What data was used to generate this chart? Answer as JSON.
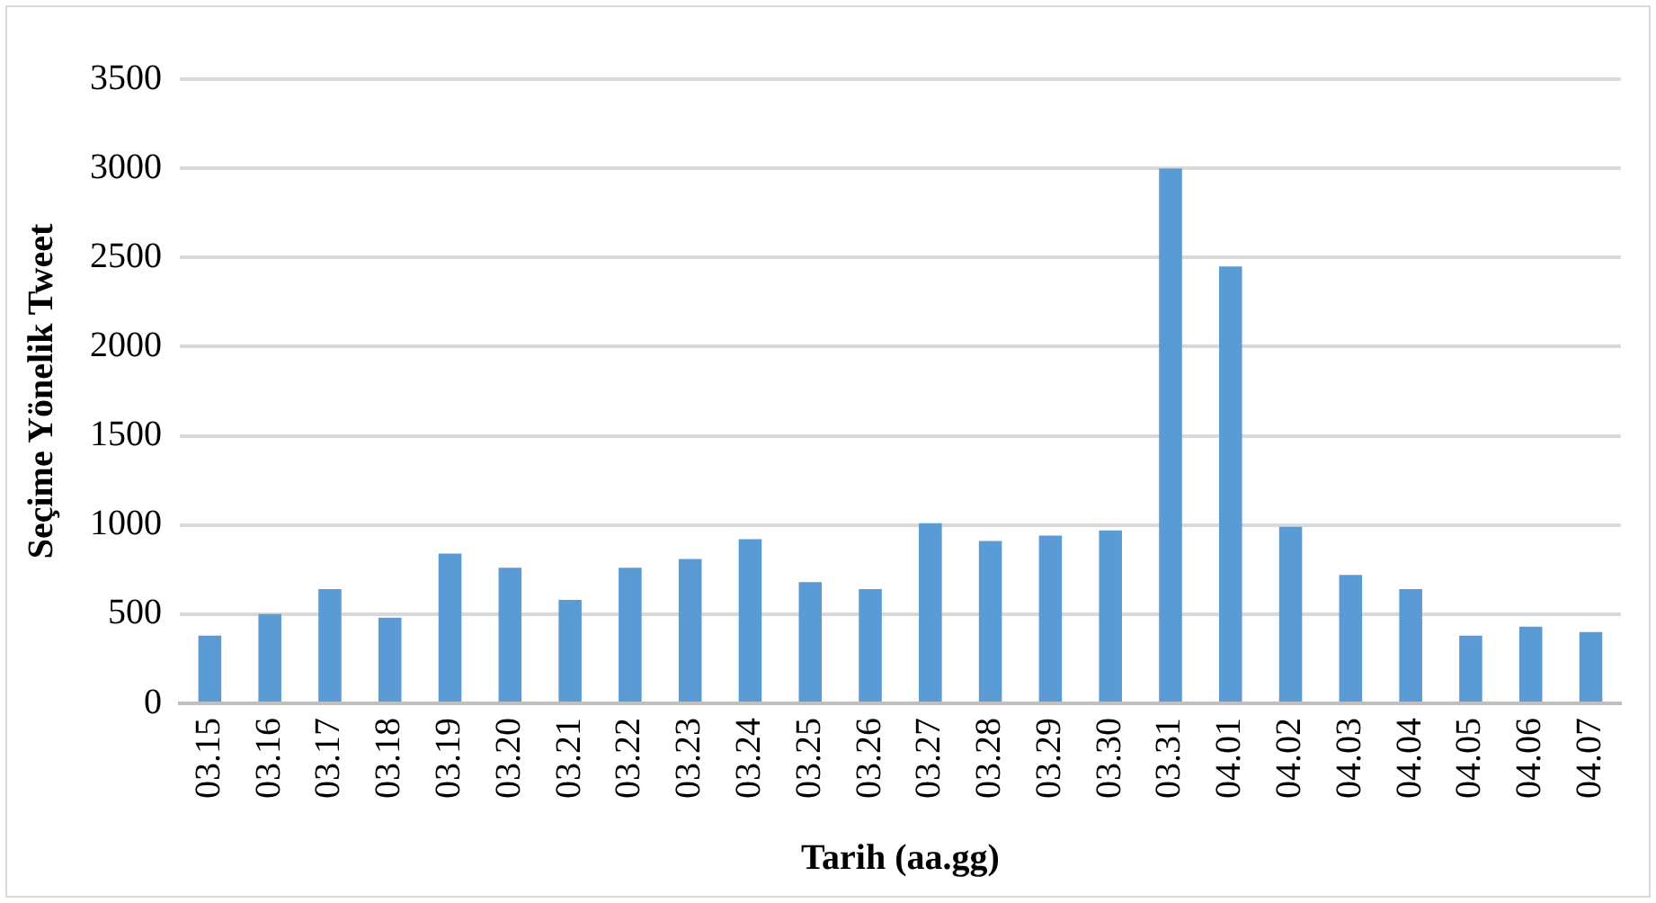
{
  "chart_data": {
    "type": "bar",
    "xlabel": "Tarih (aa.gg)",
    "ylabel": "Seçime Yönelik Tweet",
    "categories": [
      "03.15",
      "03.16",
      "03.17",
      "03.18",
      "03.19",
      "03.20",
      "03.21",
      "03.22",
      "03.23",
      "03.24",
      "03.25",
      "03.26",
      "03.27",
      "03.28",
      "03.29",
      "03.30",
      "03.31",
      "04.01",
      "04.02",
      "04.03",
      "04.04",
      "04.05",
      "04.06",
      "04.07"
    ],
    "values": [
      380,
      500,
      640,
      480,
      840,
      760,
      580,
      760,
      810,
      920,
      680,
      640,
      1010,
      910,
      940,
      970,
      3000,
      2450,
      990,
      720,
      640,
      380,
      430,
      400
    ],
    "color": "#5b9bd5",
    "ylim": [
      0,
      3500
    ],
    "yticks": [
      0,
      500,
      1000,
      1500,
      2000,
      2500,
      3000,
      3500
    ],
    "grid": "y"
  }
}
